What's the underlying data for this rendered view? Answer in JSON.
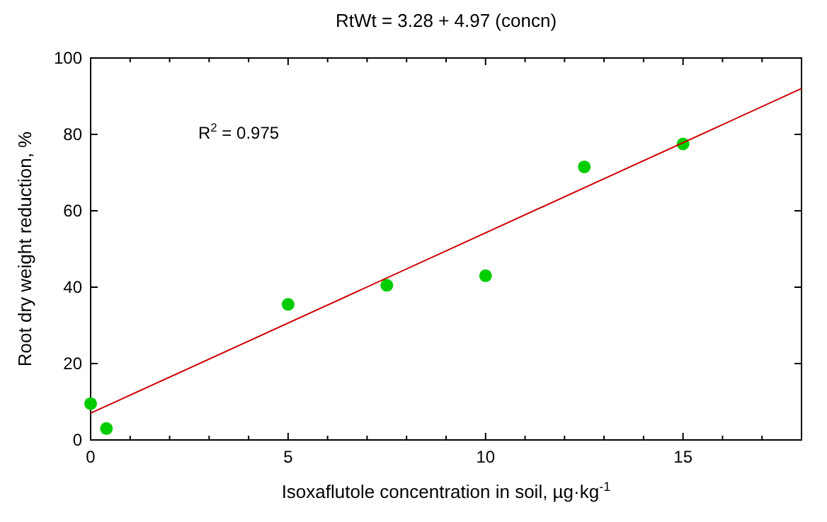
{
  "chart_data": {
    "type": "scatter",
    "title": "RtWt = 3.28 + 4.97 (concn)",
    "xlabel": "Isoxaflutole concentration in soil, µg·kg$^{-1}$",
    "ylabel": "Root dry weight reduction, %",
    "annotations": [
      "R$^{2}$ = 0.975"
    ],
    "xlim": [
      0,
      18
    ],
    "xticks": [
      0,
      {
        "value": 1,
        "label": null
      },
      {
        "value": 2,
        "label": null
      },
      {
        "value": 3,
        "label": null
      },
      {
        "value": 4,
        "label": null
      },
      5,
      {
        "value": 6,
        "label": null
      },
      {
        "value": 7,
        "label": null
      },
      {
        "value": 8,
        "label": null
      },
      {
        "value": 9,
        "label": null
      },
      10,
      {
        "value": 11,
        "label": null
      },
      {
        "value": 12,
        "label": null
      },
      {
        "value": 13,
        "label": null
      },
      {
        "value": 14,
        "label": null
      },
      15,
      {
        "value": 16,
        "label": null
      },
      {
        "value": 17,
        "label": null
      }
    ],
    "ylim": [
      0,
      100
    ],
    "yticks": [
      0,
      20,
      40,
      60,
      80,
      100
    ],
    "grid": false,
    "series": [
      {
        "marker": "circle",
        "color": "#00cc00",
        "x": [
          0,
          0.4,
          5,
          7.5,
          10,
          12.5,
          15
        ],
        "values": [
          9.5,
          3,
          35.5,
          40.5,
          43,
          71.5,
          77.5
        ]
      },
      {
        "type": "line",
        "color": "#cc0000",
        "line_style": "solid",
        "x": [
          0,
          18
        ],
        "values": [
          7,
          92
        ]
      }
    ]
  }
}
